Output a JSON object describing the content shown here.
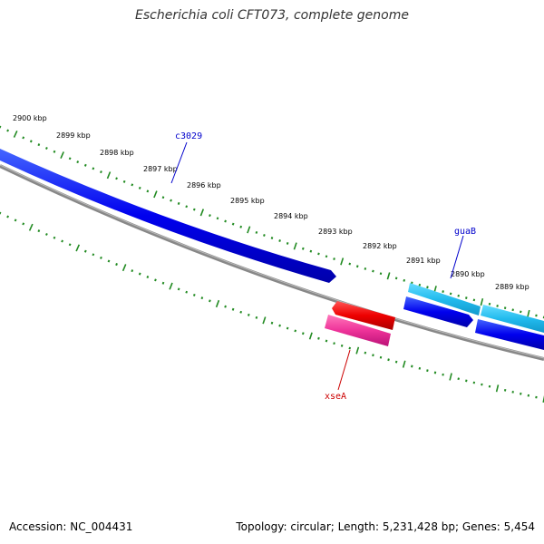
{
  "title": "Escherichia coli CFT073, complete genome",
  "accession_text": "Accession: NC_004431",
  "topology_text": "Topology: circular; Length: 5,231,428 bp; Genes: 5,454",
  "ruler": {
    "labels": [
      "2900 kbp",
      "2899 kbp",
      "2898 kbp",
      "2897 kbp",
      "2896 kbp",
      "2895 kbp",
      "2894 kbp",
      "2893 kbp",
      "2892 kbp",
      "2891 kbp",
      "2890 kbp",
      "2889 kbp"
    ]
  },
  "genes": {
    "c3029": {
      "label": "c3029",
      "color": "#0000cc"
    },
    "guaB": {
      "label": "guaB",
      "color": "#0000cc"
    },
    "xseA": {
      "label": "xseA",
      "color": "#cc0000"
    }
  },
  "colors": {
    "backbone": "#808080",
    "tick": "#228b22",
    "blue_gene": "#0000e6",
    "cyan_gene": "#22bbee",
    "red_gene": "#ee0000",
    "pink_gene": "#ee3399"
  }
}
